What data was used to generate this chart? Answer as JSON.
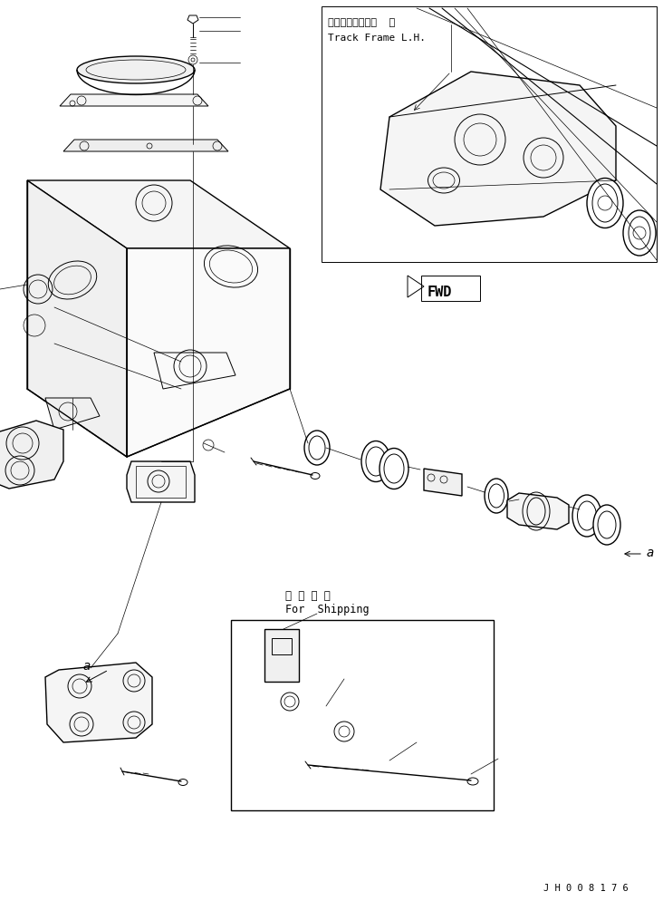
{
  "bg_color": "#ffffff",
  "line_color": "#000000",
  "fig_width": 7.32,
  "fig_height": 9.95,
  "dpi": 100,
  "label_track_frame_jp": "トラックフレーム  左",
  "label_track_frame_en": "Track Frame L.H.",
  "label_fwd": "FWD",
  "label_shipping_jp": "運 搜 部 品",
  "label_shipping_en": "For  Shipping",
  "label_a": "a",
  "label_code": "J H 0 0 8 1 7 6"
}
